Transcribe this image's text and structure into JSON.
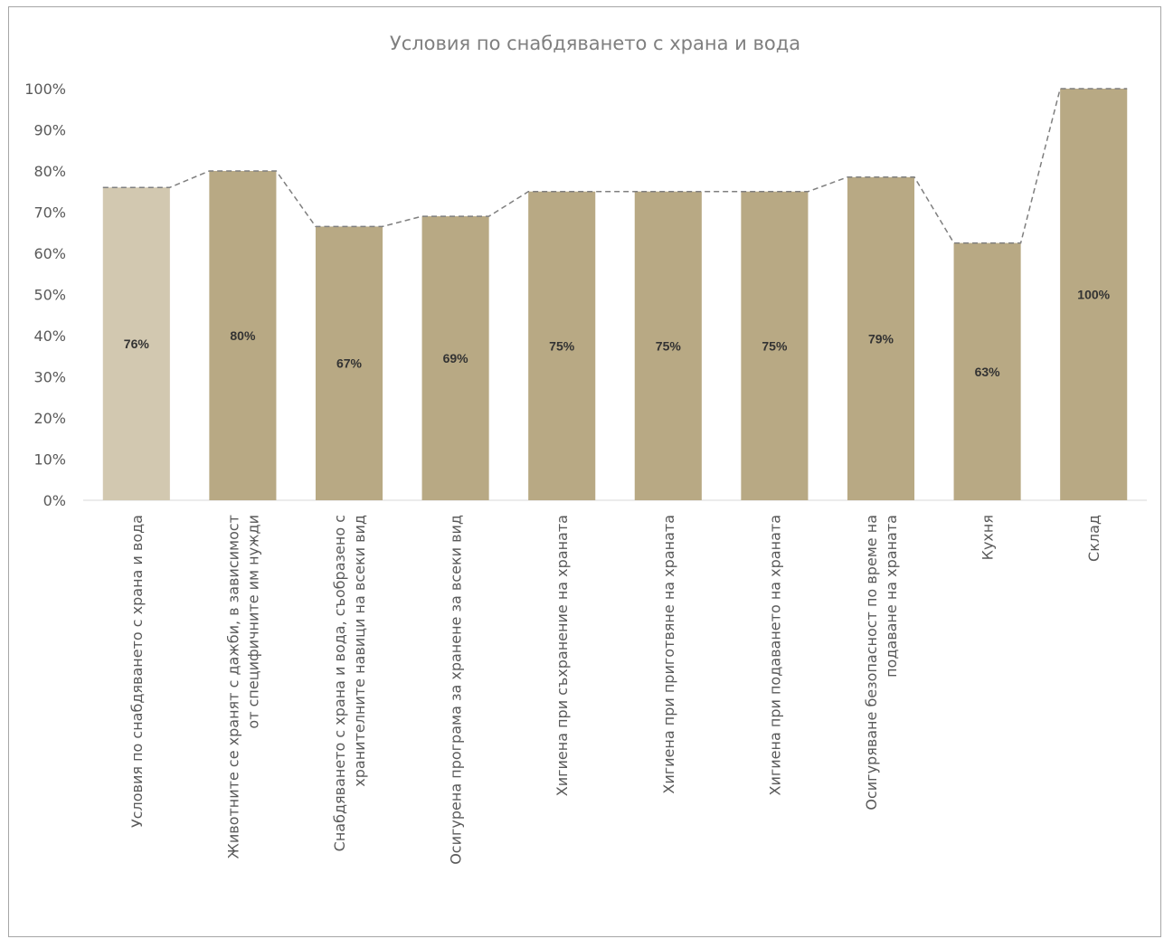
{
  "chart_data": {
    "type": "bar",
    "title": "Условия по снабдяването с храна и вода",
    "xlabel": "",
    "ylabel": "",
    "ylim": [
      0,
      100
    ],
    "yticks": [
      "0%",
      "10%",
      "20%",
      "30%",
      "40%",
      "50%",
      "60%",
      "70%",
      "80%",
      "90%",
      "100%"
    ],
    "categories": [
      [
        "Условия по снабдяването с храна и вода"
      ],
      [
        "Животните се хранят с дажби, в зависимост",
        "от специфичните им нужди"
      ],
      [
        "Снабдяването с храна и вода, съобразено с",
        "хранителните навици на всеки вид"
      ],
      [
        "Осигурена програма за хранене за всеки вид"
      ],
      [
        "Хигиена при съхранение на храната"
      ],
      [
        "Хигиена при приготвяне на храната"
      ],
      [
        "Хигиена при подаването на храната"
      ],
      [
        "Осигуряване безопасност по време на",
        "подаване на храната"
      ],
      [
        "Кухня"
      ],
      [
        "Склад"
      ]
    ],
    "values": [
      76,
      80,
      66.5,
      69,
      75,
      75,
      75,
      78.5,
      62.5,
      100
    ],
    "labels": [
      "76%",
      "80%",
      "67%",
      "69%",
      "75%",
      "75%",
      "75%",
      "79%",
      "63%",
      "100%"
    ],
    "bar_colors": [
      "#d2c8b0",
      "#b8a984",
      "#b8a984",
      "#b8a984",
      "#b8a984",
      "#b8a984",
      "#b8a984",
      "#b8a984",
      "#b8a984",
      "#b8a984"
    ],
    "trend_line": {
      "style": "dashed",
      "color": "#7f7f7f"
    },
    "grid": false,
    "legend": "none"
  }
}
